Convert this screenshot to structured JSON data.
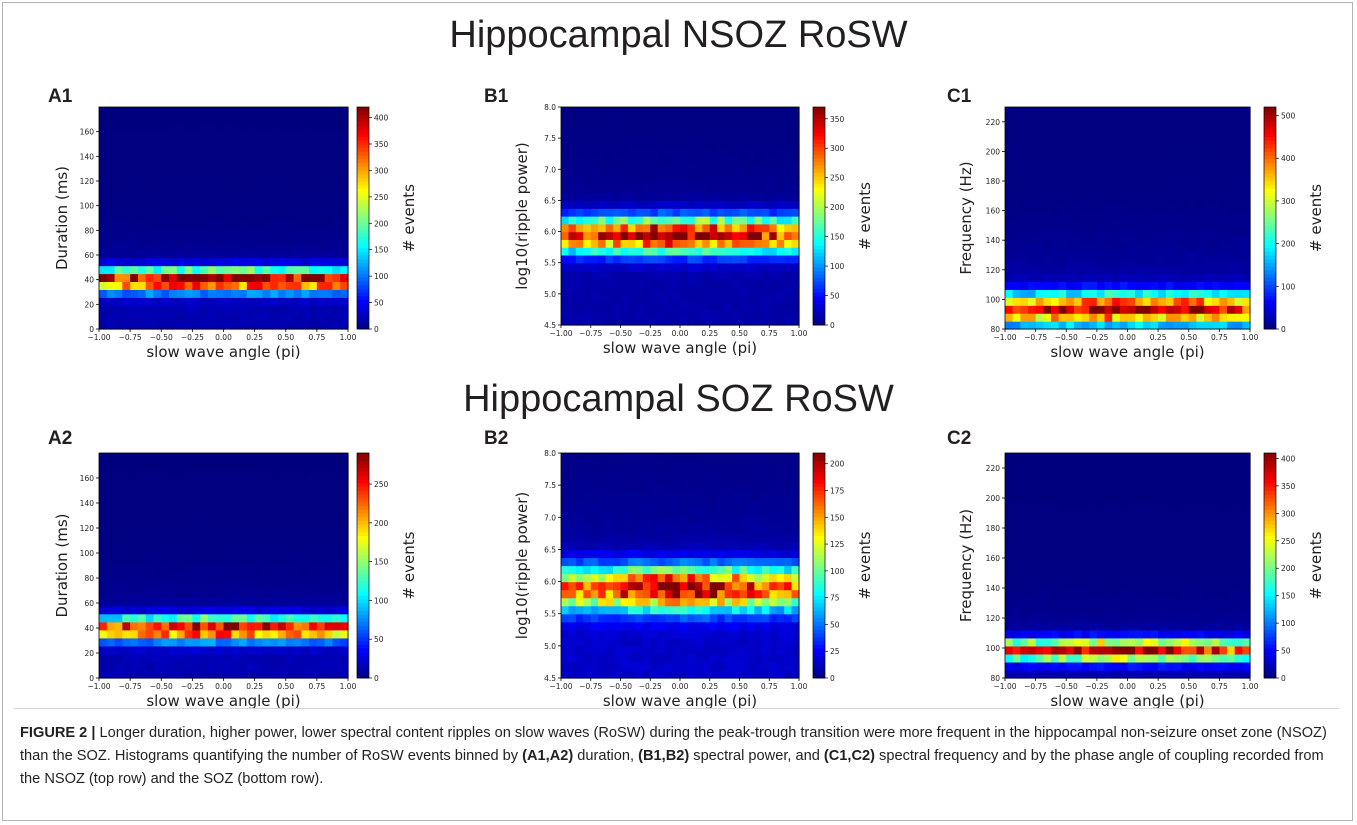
{
  "figure": {
    "row_titles": [
      "Hippocampal NSOZ RoSW",
      "Hippocampal SOZ RoSW"
    ],
    "caption": {
      "lead": "FIGURE 2 |",
      "part1": " Longer duration, higher power, lower spectral content ripples on slow waves (RoSW) during the peak-trough transition were more frequent in the hippocampal non-seizure onset zone (NSOZ) than the SOZ. Histograms quantifying the number of RoSW events binned by ",
      "ref1": "(A1,A2)",
      "part2": " duration, ",
      "ref2": "(B1,B2)",
      "part3": " spectral power, and ",
      "ref3": "(C1,C2)",
      "part4": " spectral frequency and by the phase angle of coupling recorded from the NSOZ (top row) and the SOZ (bottom row)."
    },
    "colormap": [
      "#00007f",
      "#0000ff",
      "#007fff",
      "#00ffff",
      "#7fff7f",
      "#ffff00",
      "#ff7f00",
      "#ff0000",
      "#7f0000"
    ]
  },
  "chart_data": [
    {
      "id": "A1",
      "panel_label": "A1",
      "type": "heatmap",
      "xlabel": "slow wave angle (pi)",
      "ylabel": "Duration (ms)",
      "colorbar_label": "# events",
      "xlim": [
        -1.0,
        1.0
      ],
      "ylim": [
        0,
        180
      ],
      "x_ticks": [
        -1.0,
        -0.75,
        -0.5,
        -0.25,
        0.0,
        0.25,
        0.5,
        0.75,
        1.0
      ],
      "x_tick_labels": [
        "−1.00",
        "−0.75",
        "−0.50",
        "−0.25",
        "0.00",
        "0.25",
        "0.50",
        "0.75",
        "1.00"
      ],
      "y_ticks": [
        0,
        20,
        40,
        60,
        80,
        100,
        120,
        140,
        160
      ],
      "y_tick_labels": [
        "0",
        "20",
        "40",
        "60",
        "80",
        "100",
        "120",
        "140",
        "160"
      ],
      "cbar_ticks": [
        0,
        50,
        100,
        150,
        200,
        250,
        300,
        350,
        400
      ],
      "cbar_tick_labels": [
        "0",
        "50",
        "100",
        "150",
        "200",
        "250",
        "300",
        "350",
        "400"
      ],
      "cbar_max": 420,
      "peak_y": 40,
      "peak_width": 9,
      "peak_x_width": 1.4,
      "peak_value": 400,
      "tail_value": 20
    },
    {
      "id": "B1",
      "panel_label": "B1",
      "type": "heatmap",
      "xlabel": "slow wave angle (pi)",
      "ylabel": "log10(ripple power)",
      "colorbar_label": "# events",
      "xlim": [
        -1.0,
        1.0
      ],
      "ylim": [
        4.5,
        8.0
      ],
      "x_ticks": [
        -1.0,
        -0.75,
        -0.5,
        -0.25,
        0.0,
        0.25,
        0.5,
        0.75,
        1.0
      ],
      "x_tick_labels": [
        "−1.00",
        "−0.75",
        "−0.50",
        "−0.25",
        "0.00",
        "0.25",
        "0.50",
        "0.75",
        "1.00"
      ],
      "y_ticks": [
        4.5,
        5.0,
        5.5,
        6.0,
        6.5,
        7.0,
        7.5,
        8.0
      ],
      "y_tick_labels": [
        "4.5",
        "5.0",
        "5.5",
        "6.0",
        "6.5",
        "7.0",
        "7.5",
        "8.0"
      ],
      "cbar_ticks": [
        0,
        50,
        100,
        150,
        200,
        250,
        300,
        350
      ],
      "cbar_tick_labels": [
        "0",
        "50",
        "100",
        "150",
        "200",
        "250",
        "300",
        "350"
      ],
      "cbar_max": 370,
      "peak_y": 5.95,
      "peak_width": 0.28,
      "peak_x_width": 0.9,
      "peak_value": 350,
      "tail_value": 15
    },
    {
      "id": "C1",
      "panel_label": "C1",
      "type": "heatmap",
      "xlabel": "slow wave angle (pi)",
      "ylabel": "Frequency (Hz)",
      "colorbar_label": "# events",
      "xlim": [
        -1.0,
        1.0
      ],
      "ylim": [
        80,
        230
      ],
      "x_ticks": [
        -1.0,
        -0.75,
        -0.5,
        -0.25,
        0.0,
        0.25,
        0.5,
        0.75,
        1.0
      ],
      "x_tick_labels": [
        "−1.00",
        "−0.75",
        "−0.50",
        "−0.25",
        "0.00",
        "0.25",
        "0.50",
        "0.75",
        "1.00"
      ],
      "y_ticks": [
        80,
        100,
        120,
        140,
        160,
        180,
        200,
        220
      ],
      "y_tick_labels": [
        "80",
        "100",
        "120",
        "140",
        "160",
        "180",
        "200",
        "220"
      ],
      "cbar_ticks": [
        0,
        100,
        200,
        300,
        400,
        500
      ],
      "cbar_tick_labels": [
        "0",
        "100",
        "200",
        "300",
        "400",
        "500"
      ],
      "cbar_max": 520,
      "peak_y": 94,
      "peak_width": 10,
      "peak_x_width": 1.0,
      "peak_value": 480,
      "tail_value": 40
    },
    {
      "id": "A2",
      "panel_label": "A2",
      "type": "heatmap",
      "xlabel": "slow wave angle (pi)",
      "ylabel": "Duration (ms)",
      "colorbar_label": "# events",
      "xlim": [
        -1.0,
        1.0
      ],
      "ylim": [
        0,
        180
      ],
      "x_ticks": [
        -1.0,
        -0.75,
        -0.5,
        -0.25,
        0.0,
        0.25,
        0.5,
        0.75,
        1.0
      ],
      "x_tick_labels": [
        "−1.00",
        "−0.75",
        "−0.50",
        "−0.25",
        "0.00",
        "0.25",
        "0.50",
        "0.75",
        "1.00"
      ],
      "y_ticks": [
        0,
        20,
        40,
        60,
        80,
        100,
        120,
        140,
        160
      ],
      "y_tick_labels": [
        "0",
        "20",
        "40",
        "60",
        "80",
        "100",
        "120",
        "140",
        "160"
      ],
      "cbar_ticks": [
        0,
        50,
        100,
        150,
        200,
        250
      ],
      "cbar_tick_labels": [
        "0",
        "50",
        "100",
        "150",
        "200",
        "250"
      ],
      "cbar_max": 290,
      "peak_y": 40,
      "peak_width": 9,
      "peak_x_width": 0.8,
      "peak_value": 275,
      "tail_value": 15
    },
    {
      "id": "B2",
      "panel_label": "B2",
      "type": "heatmap",
      "xlabel": "slow wave angle (pi)",
      "ylabel": "log10(ripple power)",
      "colorbar_label": "# events",
      "xlim": [
        -1.0,
        1.0
      ],
      "ylim": [
        4.5,
        8.0
      ],
      "x_ticks": [
        -1.0,
        -0.75,
        -0.5,
        -0.25,
        0.0,
        0.25,
        0.5,
        0.75,
        1.0
      ],
      "x_tick_labels": [
        "−1.00",
        "−0.75",
        "−0.50",
        "−0.25",
        "0.00",
        "0.25",
        "0.50",
        "0.75",
        "1.00"
      ],
      "y_ticks": [
        4.5,
        5.0,
        5.5,
        6.0,
        6.5,
        7.0,
        7.5,
        8.0
      ],
      "y_tick_labels": [
        "4.5",
        "5.0",
        "5.5",
        "6.0",
        "6.5",
        "7.0",
        "7.5",
        "8.0"
      ],
      "cbar_ticks": [
        0,
        25,
        50,
        75,
        100,
        125,
        150,
        175,
        200
      ],
      "cbar_tick_labels": [
        "0",
        "25",
        "50",
        "75",
        "100",
        "125",
        "150",
        "175",
        "200"
      ],
      "cbar_max": 210,
      "peak_y": 5.9,
      "peak_width": 0.33,
      "peak_x_width": 0.55,
      "peak_value": 195,
      "tail_value": 15
    },
    {
      "id": "C2",
      "panel_label": "C2",
      "type": "heatmap",
      "xlabel": "slow wave angle (pi)",
      "ylabel": "Frequency (Hz)",
      "colorbar_label": "# events",
      "xlim": [
        -1.0,
        1.0
      ],
      "ylim": [
        80,
        230
      ],
      "x_ticks": [
        -1.0,
        -0.75,
        -0.5,
        -0.25,
        0.0,
        0.25,
        0.5,
        0.75,
        1.0
      ],
      "x_tick_labels": [
        "−1.00",
        "−0.75",
        "−0.50",
        "−0.25",
        "0.00",
        "0.25",
        "0.50",
        "0.75",
        "1.00"
      ],
      "y_ticks": [
        80,
        100,
        120,
        140,
        160,
        180,
        200,
        220
      ],
      "y_tick_labels": [
        "80",
        "100",
        "120",
        "140",
        "160",
        "180",
        "200",
        "220"
      ],
      "cbar_ticks": [
        0,
        50,
        100,
        150,
        200,
        250,
        300,
        350,
        400
      ],
      "cbar_tick_labels": [
        "0",
        "50",
        "100",
        "150",
        "200",
        "250",
        "300",
        "350",
        "400"
      ],
      "cbar_max": 410,
      "peak_y": 99,
      "peak_width": 7,
      "peak_x_width": 0.7,
      "peak_value": 390,
      "tail_value": 20
    }
  ]
}
